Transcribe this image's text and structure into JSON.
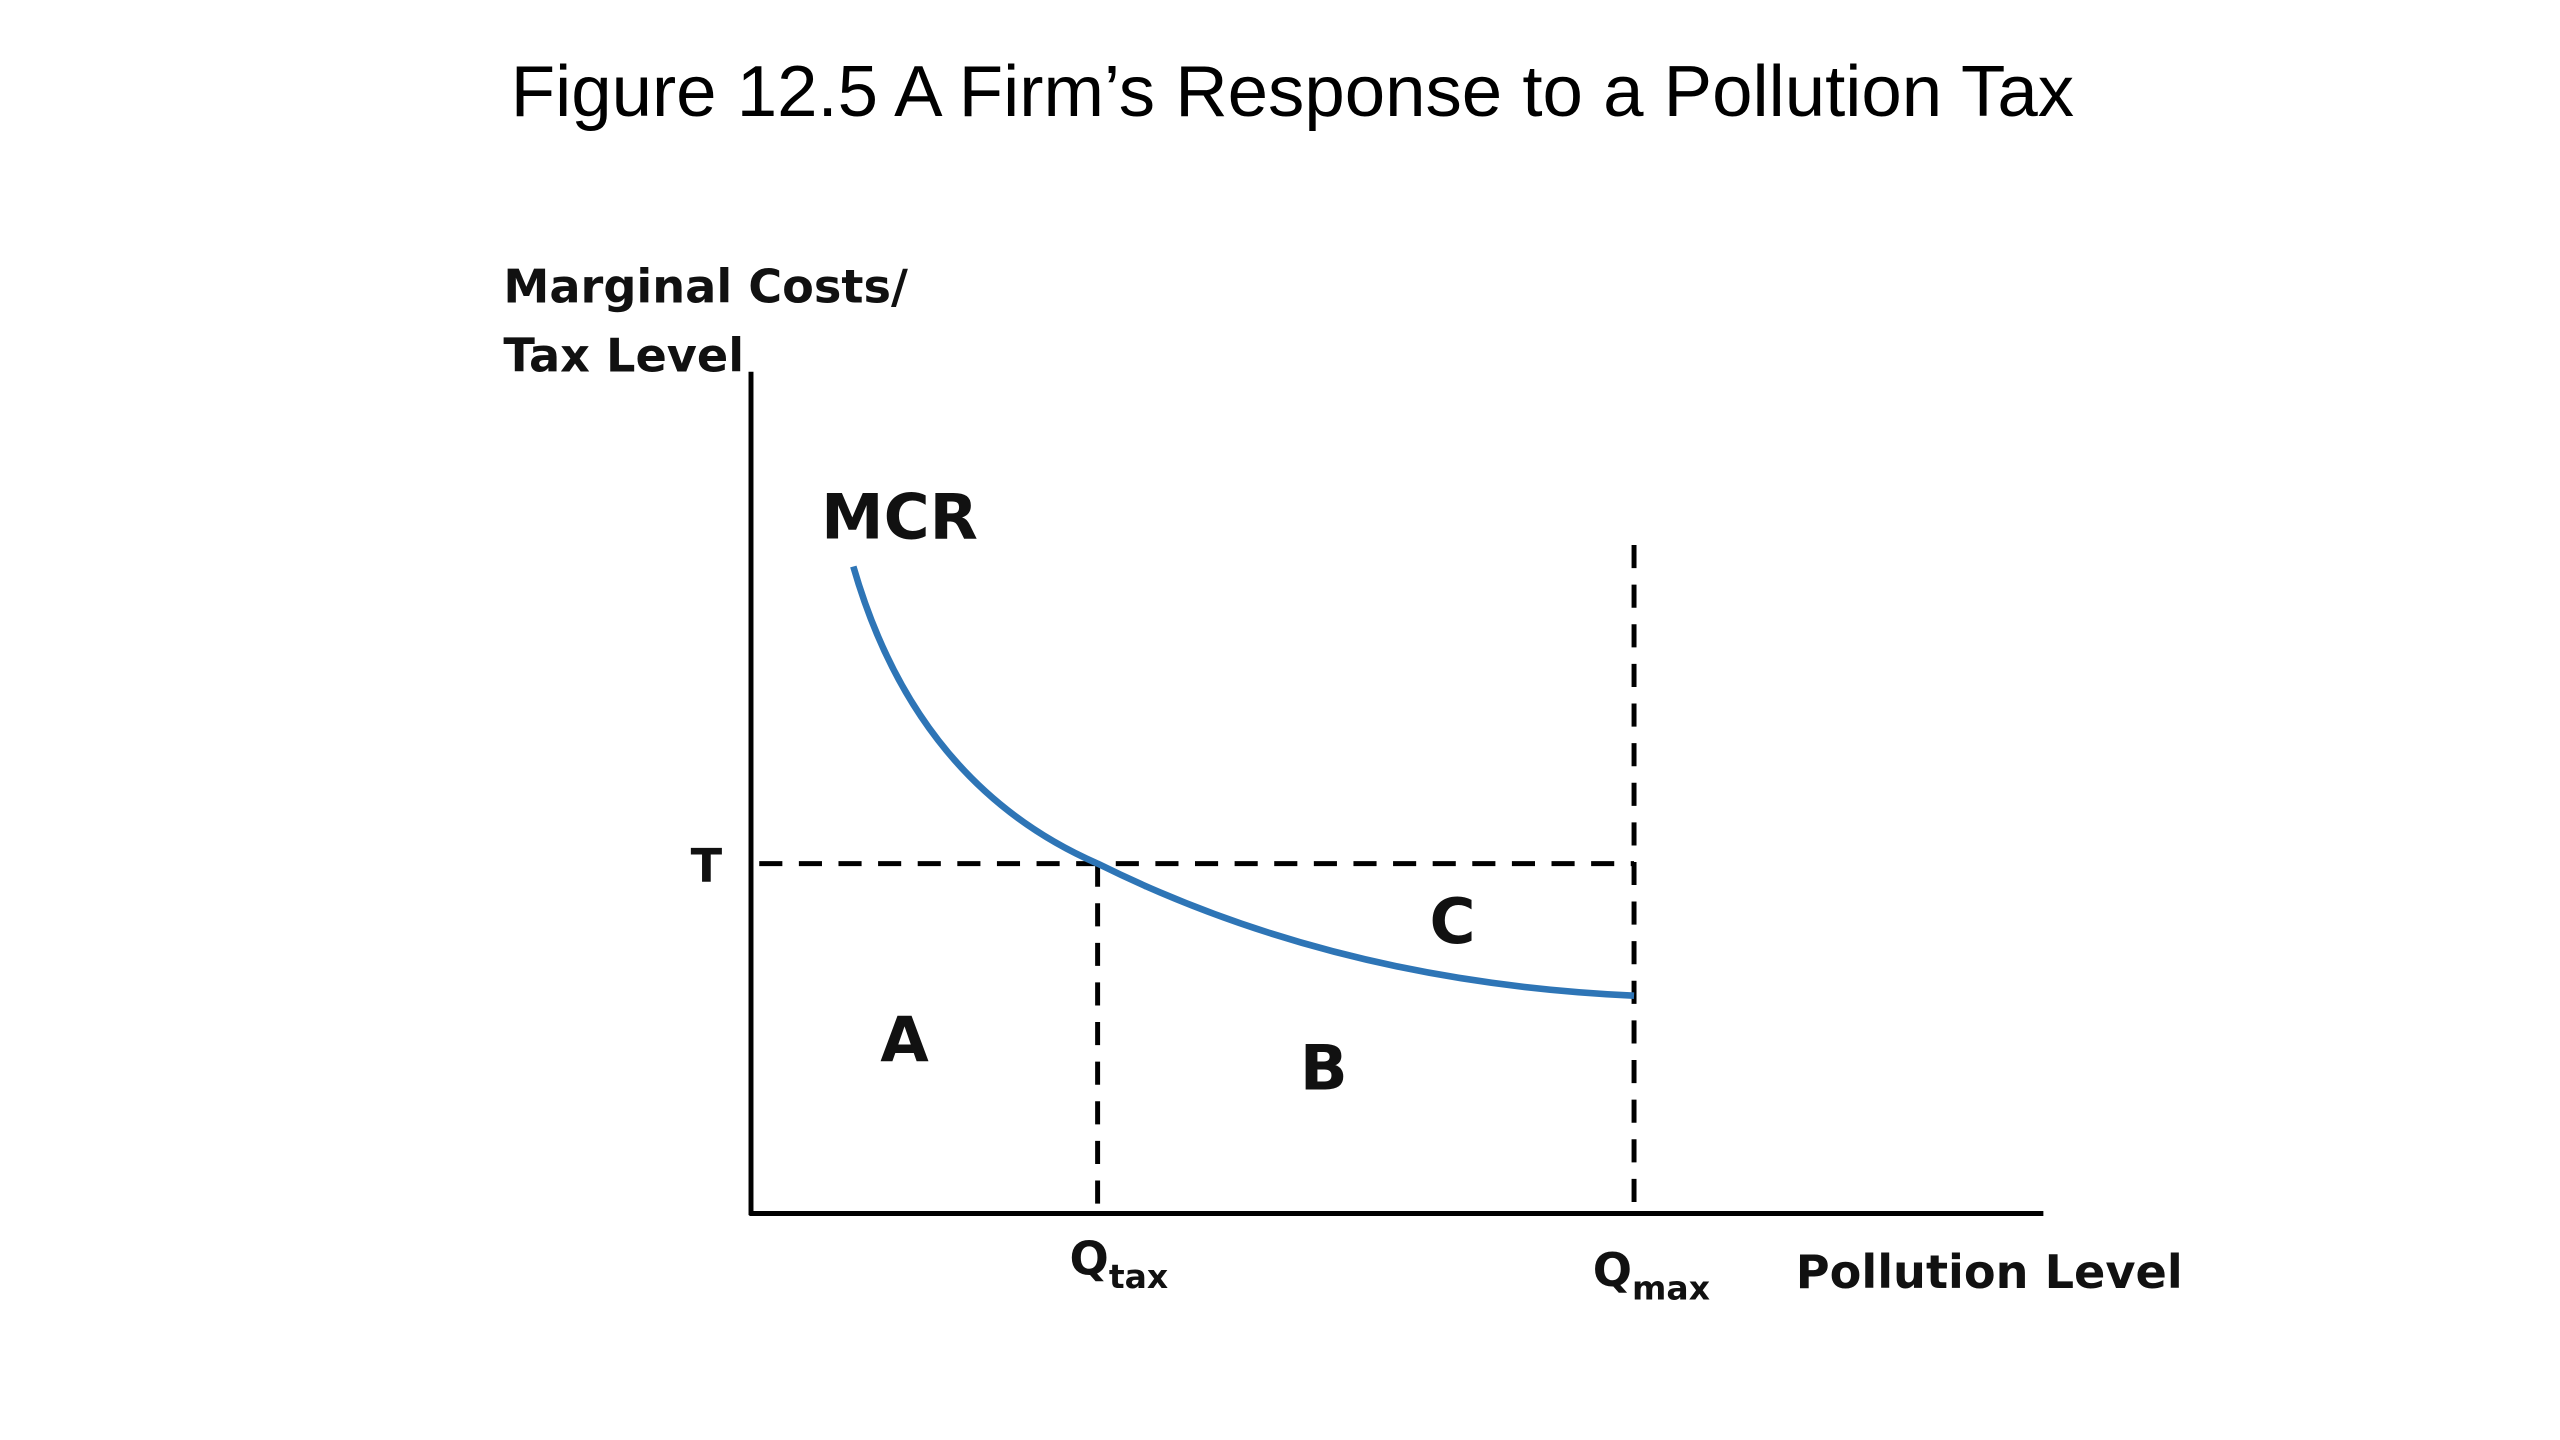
{
  "title": "Figure 12.5 A Firm’s Response to a Pollution Tax",
  "y_axis_label": [
    "Marginal Costs/",
    "Tax Level"
  ],
  "x_axis_label": "Pollution Level",
  "curve_label": "MCR",
  "tax_label": "T",
  "x_ticks": [
    {
      "main": "Q",
      "sub": "tax"
    },
    {
      "main": "Q",
      "sub": "max"
    }
  ],
  "areas": [
    "A",
    "B",
    "C"
  ]
}
